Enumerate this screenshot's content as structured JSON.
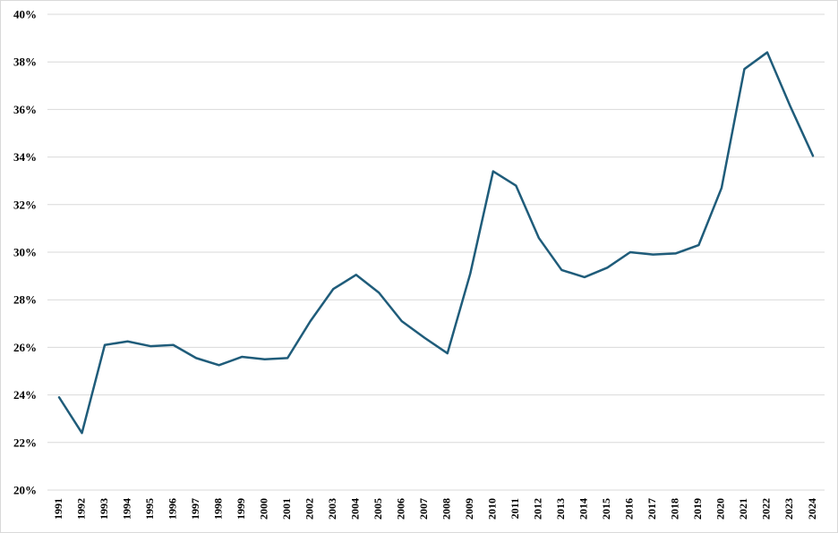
{
  "chart_data": {
    "type": "line",
    "title": "",
    "xlabel": "",
    "ylabel": "",
    "x": [
      "1991",
      "1992",
      "1993",
      "1994",
      "1995",
      "1996",
      "1997",
      "1998",
      "1999",
      "2000",
      "2001",
      "2002",
      "2003",
      "2004",
      "2005",
      "2006",
      "2007",
      "2008",
      "2009",
      "2010",
      "2011",
      "2012",
      "2013",
      "2014",
      "2015",
      "2016",
      "2017",
      "2018",
      "2019",
      "2020",
      "2021",
      "2022",
      "2023",
      "2024"
    ],
    "series": [
      {
        "values": [
          23.9,
          22.4,
          26.1,
          26.25,
          26.05,
          26.1,
          25.55,
          25.25,
          25.6,
          25.5,
          25.55,
          27.1,
          28.45,
          29.05,
          28.3,
          27.1,
          26.4,
          25.75,
          29.1,
          33.4,
          32.8,
          30.6,
          29.25,
          28.95,
          29.35,
          30.0,
          29.9,
          29.95,
          30.3,
          32.7,
          37.7,
          38.4,
          36.15,
          34.05
        ],
        "color": "#1f5c7a"
      }
    ],
    "ylim": [
      20,
      40
    ],
    "yticks": [
      20,
      22,
      24,
      26,
      28,
      30,
      32,
      34,
      36,
      38,
      40
    ],
    "ytick_format": "percent",
    "grid": true,
    "legend": "none"
  }
}
